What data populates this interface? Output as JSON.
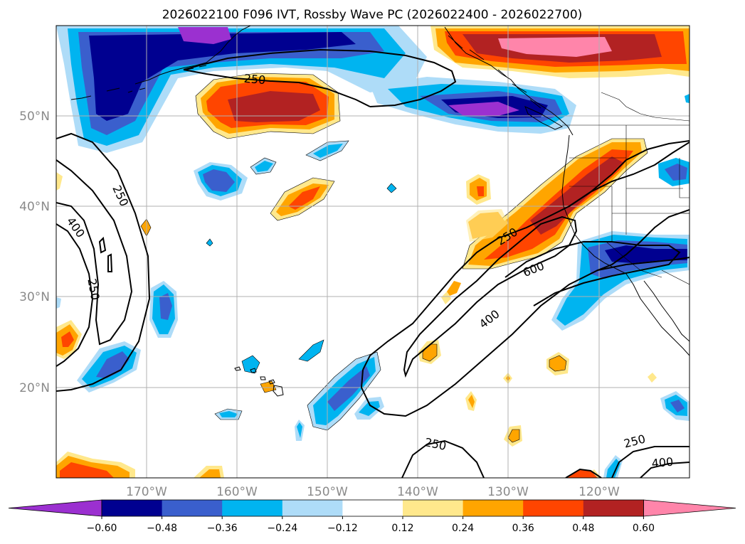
{
  "title": "2026022100 F096 IVT, Rossby Wave PC (2026022400 - 2026022700)",
  "latitude_labels": [
    "50°N",
    "40°N",
    "30°N",
    "20°N"
  ],
  "longitude_labels": [
    "170°W",
    "160°W",
    "150°W",
    "140°W",
    "130°W",
    "120°W"
  ],
  "colorbar": {
    "tick_labels": [
      "−0.60",
      "−0.48",
      "−0.36",
      "−0.24",
      "−0.12",
      "0.12",
      "0.24",
      "0.36",
      "0.48",
      "0.60"
    ],
    "colors": [
      "#9b30d0",
      "#000090",
      "#3a5fcd",
      "#00b4f0",
      "#aedcf8",
      "#ffffff",
      "#ffe88c",
      "#ffa500",
      "#ff4500",
      "#b22222",
      "#ff85aa"
    ]
  },
  "contour_labels": {
    "c1": "250",
    "c2": "250",
    "c3": "400",
    "c4": "250",
    "c5": "250",
    "c6": "600",
    "c7": "400",
    "c8": "250",
    "c9": "250",
    "c10": "400"
  },
  "colors": {
    "land_line": "#000000",
    "grid": "#b0b0b0",
    "axis_text": "#8a8a8a"
  }
}
